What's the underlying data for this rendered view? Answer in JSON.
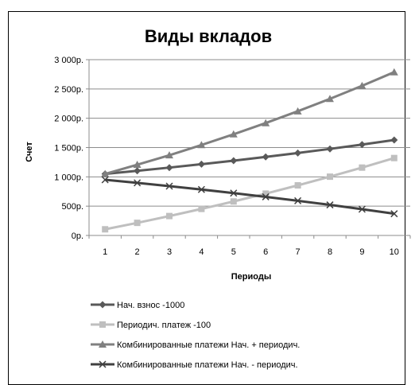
{
  "chart_data": {
    "type": "line",
    "title": "Виды вкладов",
    "xlabel": "Периоды",
    "ylabel": "Счет",
    "categories": [
      "1",
      "2",
      "3",
      "4",
      "5",
      "6",
      "7",
      "8",
      "9",
      "10"
    ],
    "yticks": [
      "0р.",
      "500р.",
      "1 000р.",
      "1 500р.",
      "2 000р.",
      "2 500р.",
      "3 000р."
    ],
    "ylim": [
      0,
      3000
    ],
    "grid": true,
    "legend_position": "bottom",
    "series": [
      {
        "name": "Нач. взнос -1000",
        "color": "#595959",
        "marker": "diamond",
        "values": [
          1050,
          1103,
          1158,
          1216,
          1276,
          1340,
          1407,
          1477,
          1551,
          1629
        ]
      },
      {
        "name": "Периодич. платеж -100",
        "color": "#bfbfbf",
        "marker": "square",
        "values": [
          105,
          215,
          331,
          453,
          580,
          714,
          855,
          1003,
          1158,
          1321
        ]
      },
      {
        "name": "Комбинированные платежи Нач. + периодич.",
        "color": "#808080",
        "marker": "triangle",
        "values": [
          1050,
          1208,
          1369,
          1544,
          1727,
          1918,
          2120,
          2331,
          2554,
          2787
        ]
      },
      {
        "name": "Комбинированные платежи Нач. - периодич.",
        "color": "#404040",
        "marker": "x",
        "values": [
          950,
          898,
          842,
          784,
          723,
          659,
          592,
          522,
          448,
          371
        ]
      }
    ]
  }
}
